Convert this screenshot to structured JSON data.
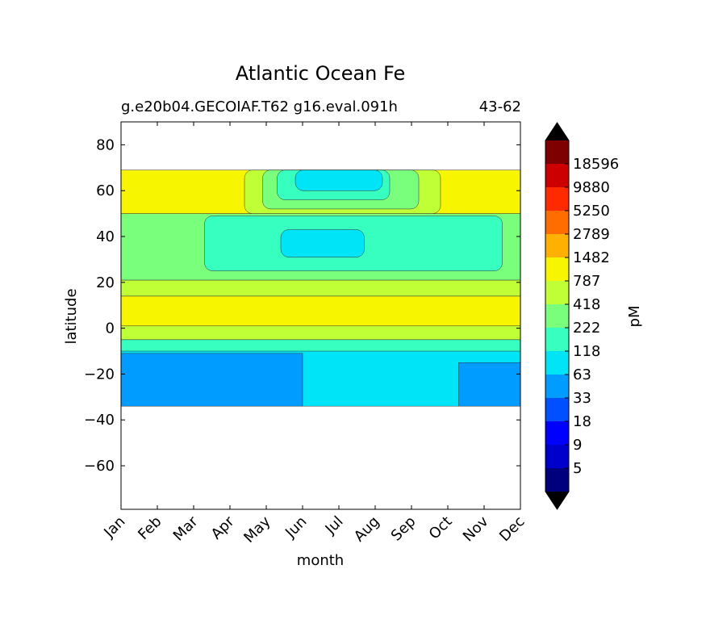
{
  "chart_data": {
    "type": "heatmap",
    "subtype": "filled-contour",
    "title": "Atlantic Ocean Fe",
    "subtitle_left": "g.e20b04.GECOIAF.T62 g16.eval.091h",
    "subtitle_right": "43-62",
    "xlabel": "month",
    "ylabel": "latitude",
    "x_categories": [
      "Jan",
      "Feb",
      "Mar",
      "Apr",
      "May",
      "Jun",
      "Jul",
      "Aug",
      "Sep",
      "Oct",
      "Nov",
      "Dec"
    ],
    "xlim": [
      0,
      11
    ],
    "ylim": [
      -79,
      90
    ],
    "y_ticks": [
      80,
      60,
      40,
      20,
      0,
      -20,
      -40,
      -60
    ],
    "data_lat_range": [
      -34,
      69
    ],
    "grid": false,
    "colorbar": {
      "label": "pM",
      "extend": "both",
      "levels": [
        5,
        9,
        18,
        33,
        63,
        118,
        222,
        418,
        787,
        1482,
        2789,
        5250,
        9880,
        18596
      ],
      "colors": [
        "#00007f",
        "#0000cc",
        "#0000ff",
        "#0050ff",
        "#009cff",
        "#00e4f8",
        "#36ffc0",
        "#7aff7d",
        "#c0ff36",
        "#f8f500",
        "#ffb000",
        "#ff6c00",
        "#ff2a00",
        "#cc0000",
        "#7f0000"
      ],
      "under_color": "#000000",
      "over_color": "#000000"
    },
    "regions": [
      {
        "level": "63-118",
        "month_start": 0,
        "month_end": 11,
        "lat_from": -34,
        "lat_to": -7
      },
      {
        "level": "33-63",
        "month_start": 0,
        "month_end": 5,
        "lat_from": -34,
        "lat_to": -11
      },
      {
        "level": "33-63",
        "month_start": 9.3,
        "month_end": 11,
        "lat_from": -34,
        "lat_to": -15
      },
      {
        "level": "118-222",
        "month_start": 0,
        "month_end": 11,
        "lat_from": -10,
        "lat_to": -5
      },
      {
        "level": "418-787",
        "month_start": 0,
        "month_end": 11,
        "lat_from": -5,
        "lat_to": 1
      },
      {
        "level": "787-1482",
        "month_start": 0,
        "month_end": 11,
        "lat_from": 1,
        "lat_to": 14
      },
      {
        "level": "418-787",
        "month_start": 0,
        "month_end": 11,
        "lat_from": 14,
        "lat_to": 21
      },
      {
        "level": "222-418",
        "month_start": 0,
        "month_end": 11,
        "lat_from": 21,
        "lat_to": 50
      },
      {
        "level": "118-222",
        "month_start": 2.3,
        "month_end": 10.5,
        "lat_from": 25,
        "lat_to": 49
      },
      {
        "level": "63-118",
        "month_start": 4.4,
        "month_end": 6.7,
        "lat_from": 31,
        "lat_to": 43
      },
      {
        "level": "787-1482",
        "month_start": 0,
        "month_end": 11,
        "lat_from": 50,
        "lat_to": 69
      },
      {
        "level": "418-787",
        "month_start": 3.4,
        "month_end": 8.8,
        "lat_from": 50,
        "lat_to": 69
      },
      {
        "level": "222-418",
        "month_start": 3.9,
        "month_end": 8.2,
        "lat_from": 52,
        "lat_to": 69
      },
      {
        "level": "118-222",
        "month_start": 4.3,
        "month_end": 7.4,
        "lat_from": 56,
        "lat_to": 69
      },
      {
        "level": "63-118",
        "month_start": 4.8,
        "month_end": 7.2,
        "lat_from": 60,
        "lat_to": 69
      }
    ]
  }
}
